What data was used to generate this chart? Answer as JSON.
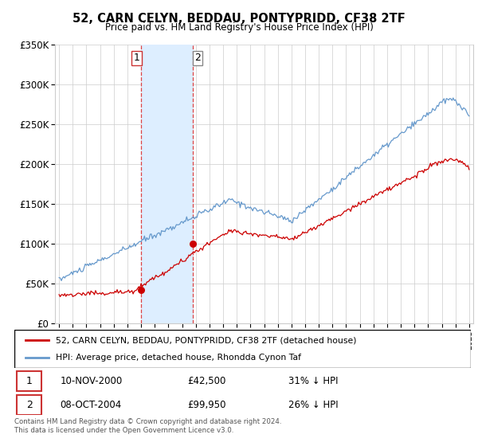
{
  "title": "52, CARN CELYN, BEDDAU, PONTYPRIDD, CF38 2TF",
  "subtitle": "Price paid vs. HM Land Registry's House Price Index (HPI)",
  "legend_label_red": "52, CARN CELYN, BEDDAU, PONTYPRIDD, CF38 2TF (detached house)",
  "legend_label_blue": "HPI: Average price, detached house, Rhondda Cynon Taf",
  "transaction1_date": "10-NOV-2000",
  "transaction1_price": "£42,500",
  "transaction1_hpi": "31% ↓ HPI",
  "transaction2_date": "08-OCT-2004",
  "transaction2_price": "£99,950",
  "transaction2_hpi": "26% ↓ HPI",
  "footer": "Contains HM Land Registry data © Crown copyright and database right 2024.\nThis data is licensed under the Open Government Licence v3.0.",
  "ylim": [
    0,
    350000
  ],
  "yticks": [
    0,
    50000,
    100000,
    150000,
    200000,
    250000,
    300000,
    350000
  ],
  "ytick_labels": [
    "£0",
    "£50K",
    "£100K",
    "£150K",
    "£200K",
    "£250K",
    "£300K",
    "£350K"
  ],
  "color_red": "#cc0000",
  "color_blue": "#6699cc",
  "color_highlight": "#ddeeff",
  "vline1_x": 2001.0,
  "vline2_x": 2004.8,
  "point1_x": 2001.0,
  "point1_y": 42500,
  "point2_x": 2004.8,
  "point2_y": 99950,
  "xmin": 1995,
  "xmax": 2025
}
